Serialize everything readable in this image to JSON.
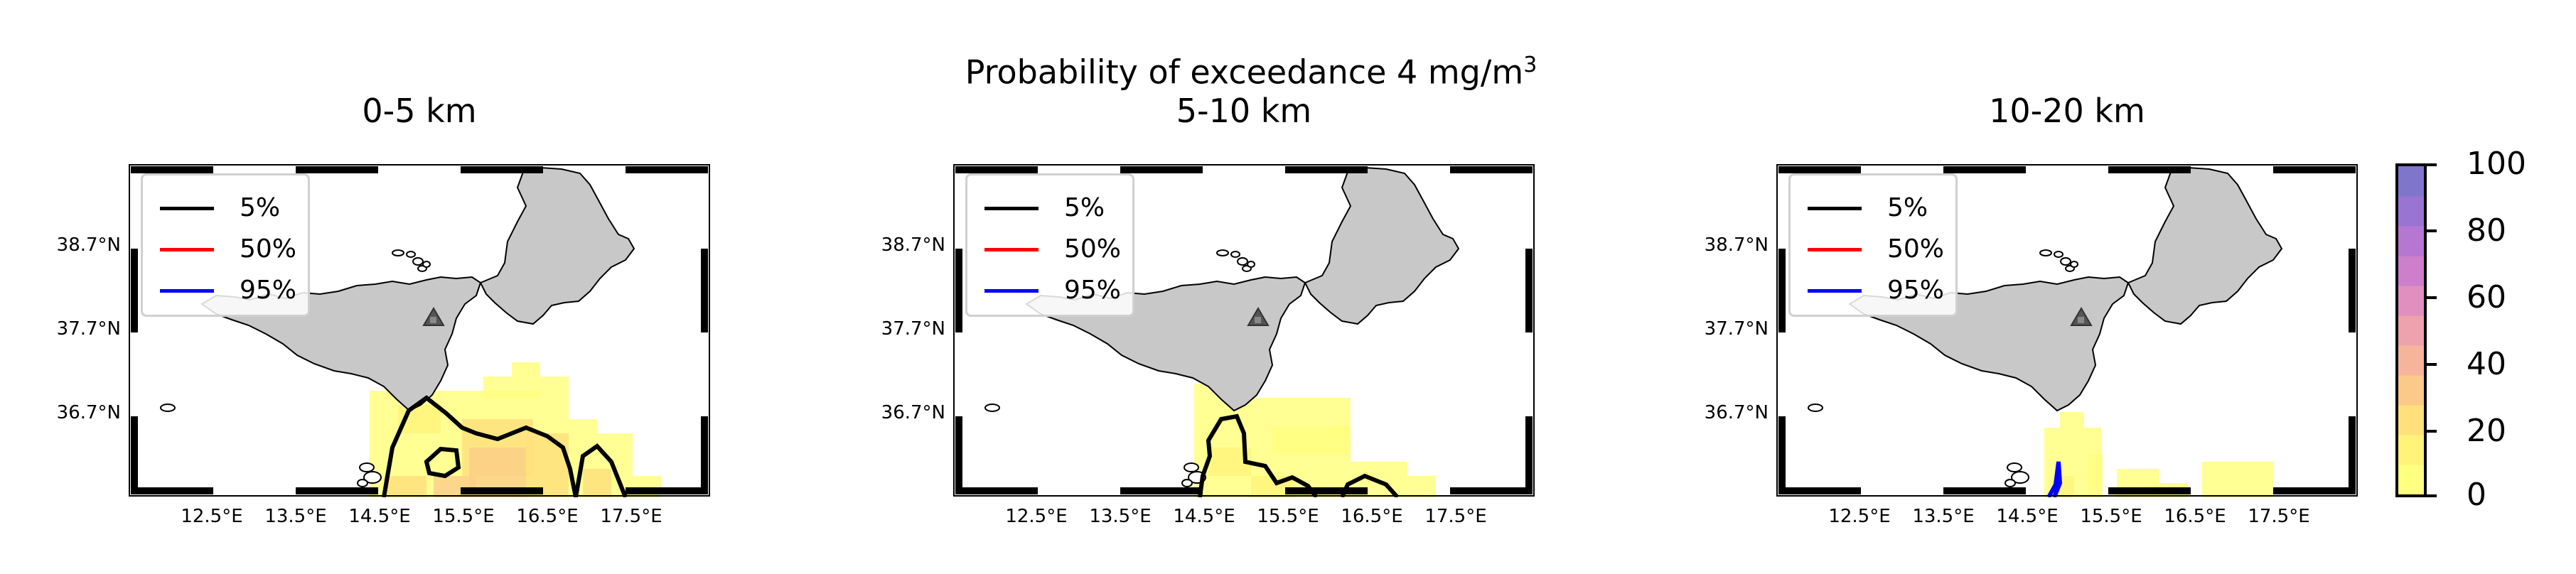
{
  "figure": {
    "title": "Probability of exceedance 4 mg/m",
    "title_superscript": "3"
  },
  "panels": [
    {
      "title": "0-5 km"
    },
    {
      "title": "5-10 km"
    },
    {
      "title": "10-20 km"
    }
  ],
  "legend": [
    {
      "label": "5%",
      "color": "#000000"
    },
    {
      "label": "50%",
      "color": "#ff0000"
    },
    {
      "label": "95%",
      "color": "#0000ff"
    }
  ],
  "lat_ticks": [
    "38.7°N",
    "37.7°N",
    "36.7°N"
  ],
  "lon_ticks": [
    "12.5°E",
    "13.5°E",
    "14.5°E",
    "15.5°E",
    "16.5°E",
    "17.5°E"
  ],
  "colorbar": {
    "ticks": [
      "100",
      "80",
      "60",
      "40",
      "20",
      "0"
    ],
    "colors": [
      "#ffff80",
      "#fff37a",
      "#ffe07c",
      "#fbc98a",
      "#f6b59a",
      "#eea2ad",
      "#e08fbe",
      "#cd7fcb",
      "#b577d2",
      "#9a74d2",
      "#7f76cc"
    ]
  },
  "colors": {
    "land": "#c8c8c8",
    "volcano_marker": "#555555"
  }
}
